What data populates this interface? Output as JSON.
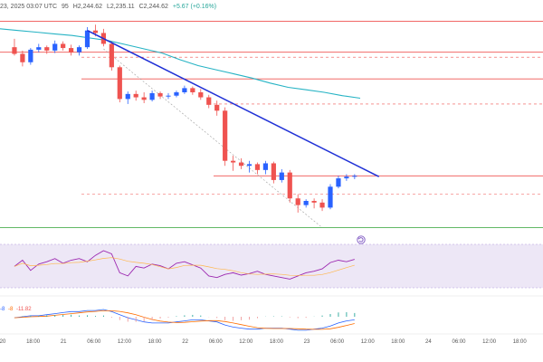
{
  "header": {
    "date_fragment": "23, 2025 03:07 UTC",
    "open_fragment": "95",
    "high": "H2,244.62",
    "low": "L2,235.11",
    "close": "C2,244.62",
    "change": "+5.67 (+0.16%)"
  },
  "macd_values": {
    "v1": "-8",
    "v2": "-8",
    "v3": "-11.82"
  },
  "colors": {
    "up": "#2962ff",
    "down": "#ef5350",
    "trendline": "#1e2fd6",
    "ma": "#26b3c4",
    "support": "#4caf50",
    "rsi_bg": "#ede7f6",
    "rsi_line": "#9c27b0"
  },
  "icons": {
    "replay": "replay-icon"
  },
  "chart_data": {
    "type": "candlestick",
    "x_ticks": [
      "20",
      "18:00",
      "21",
      "06:00",
      "12:00",
      "18:00",
      "22",
      "06:00",
      "12:00",
      "18:00",
      "23",
      "06:00",
      "12:00",
      "18:00",
      "24",
      "06:00",
      "12:00",
      "18:00"
    ],
    "candles": [
      [
        2448,
        2458,
        2438,
        2440
      ],
      [
        2440,
        2444,
        2425,
        2430
      ],
      [
        2430,
        2447,
        2427,
        2445
      ],
      [
        2445,
        2452,
        2442,
        2448
      ],
      [
        2448,
        2450,
        2440,
        2444
      ],
      [
        2444,
        2456,
        2441,
        2452
      ],
      [
        2452,
        2455,
        2444,
        2447
      ],
      [
        2447,
        2451,
        2438,
        2442
      ],
      [
        2442,
        2450,
        2438,
        2448
      ],
      [
        2448,
        2472,
        2446,
        2468
      ],
      [
        2468,
        2475,
        2461,
        2465
      ],
      [
        2465,
        2470,
        2449,
        2452
      ],
      [
        2452,
        2455,
        2420,
        2424
      ],
      [
        2424,
        2426,
        2382,
        2386
      ],
      [
        2386,
        2395,
        2380,
        2392
      ],
      [
        2392,
        2396,
        2384,
        2388
      ],
      [
        2388,
        2394,
        2381,
        2385
      ],
      [
        2385,
        2396,
        2383,
        2393
      ],
      [
        2393,
        2395,
        2386,
        2389
      ],
      [
        2389,
        2393,
        2386,
        2390
      ],
      [
        2390,
        2396,
        2388,
        2394
      ],
      [
        2394,
        2402,
        2392,
        2399
      ],
      [
        2399,
        2401,
        2391,
        2394
      ],
      [
        2394,
        2398,
        2385,
        2388
      ],
      [
        2388,
        2391,
        2375,
        2379
      ],
      [
        2379,
        2384,
        2366,
        2372
      ],
      [
        2372,
        2376,
        2306,
        2312
      ],
      [
        2312,
        2318,
        2300,
        2310
      ],
      [
        2310,
        2315,
        2302,
        2306
      ],
      [
        2306,
        2312,
        2298,
        2308
      ],
      [
        2308,
        2310,
        2296,
        2301
      ],
      [
        2301,
        2312,
        2296,
        2309
      ],
      [
        2309,
        2311,
        2285,
        2289
      ],
      [
        2289,
        2302,
        2286,
        2298
      ],
      [
        2298,
        2301,
        2262,
        2267
      ],
      [
        2267,
        2272,
        2250,
        2259
      ],
      [
        2259,
        2266,
        2256,
        2264
      ],
      [
        2264,
        2267,
        2255,
        2262
      ],
      [
        2262,
        2266,
        2252,
        2256
      ],
      [
        2256,
        2284,
        2254,
        2281
      ],
      [
        2281,
        2294,
        2279,
        2291
      ],
      [
        2291,
        2296,
        2288,
        2293
      ],
      [
        2293,
        2296,
        2290,
        2294
      ]
    ],
    "ma_line": [
      2470,
      2468,
      2466,
      2464,
      2462,
      2459,
      2456,
      2451,
      2446,
      2441,
      2433,
      2426,
      2421,
      2416,
      2411,
      2405,
      2400,
      2397,
      2394,
      2390,
      2387
    ],
    "horizontal_levels": [
      {
        "price": 2479,
        "style": "solid",
        "color": "#ef5350"
      },
      {
        "price": 2442,
        "style": "solid",
        "color": "#ef5350"
      },
      {
        "price": 2436,
        "style": "dashed",
        "color": "#ef5350"
      },
      {
        "price": 2410,
        "style": "solid",
        "color": "#ef5350"
      },
      {
        "price": 2380,
        "style": "dashed",
        "color": "#ef5350"
      },
      {
        "price": 2294,
        "style": "solid",
        "color": "#ef5350"
      },
      {
        "price": 2272,
        "style": "dashed",
        "color": "#ef5350"
      },
      {
        "price": 2232,
        "style": "solid",
        "color": "#4caf50"
      }
    ],
    "trendline": {
      "from": {
        "bar": 10,
        "price": 2468
      },
      "to": {
        "bar": 46,
        "price": 2293
      }
    },
    "dotted_channel": {
      "from": {
        "bar": 12,
        "price": 2446
      },
      "to": {
        "bar": 39,
        "price": 2232
      }
    },
    "rsi": [
      52,
      60,
      47,
      55,
      58,
      62,
      56,
      60,
      62,
      58,
      66,
      72,
      68,
      44,
      40,
      52,
      50,
      55,
      53,
      49,
      56,
      58,
      54,
      50,
      40,
      38,
      42,
      44,
      41,
      43,
      46,
      42,
      40,
      38,
      36,
      40,
      44,
      46,
      49,
      57,
      60,
      58,
      61
    ],
    "macd": [
      -1,
      0,
      1,
      1,
      2,
      3,
      4,
      5,
      5,
      6,
      6,
      7,
      5,
      2,
      -1,
      -3,
      -5,
      -6,
      -6,
      -6,
      -5,
      -4,
      -3,
      -3,
      -4,
      -5,
      -8,
      -10,
      -11,
      -12,
      -12,
      -11,
      -11,
      -11,
      -12,
      -13,
      -13,
      -12,
      -11,
      -9,
      -6,
      -4,
      -3
    ]
  }
}
